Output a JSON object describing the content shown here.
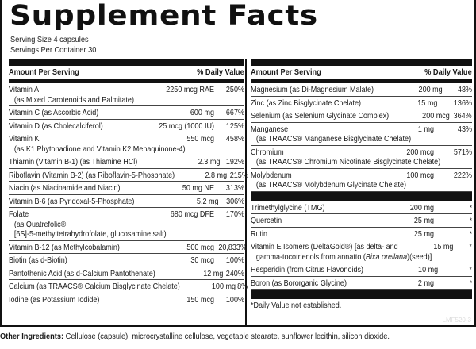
{
  "title": "Supplement Facts",
  "serving_size": "Serving Size 4 capsules",
  "servings_per_container": "Servings Per Container 30",
  "header": {
    "amount_label": "Amount Per Serving",
    "dv_label": "% Daily Value"
  },
  "left_rows": [
    {
      "name": "Vitamin A",
      "sub": "(as Mixed Carotenoids and Palmitate)",
      "amount": "2250 mcg RAE",
      "dv": "250%"
    },
    {
      "name": "Vitamin C (as Ascorbic Acid)",
      "amount": "600 mg",
      "dv": "667%"
    },
    {
      "name": "Vitamin D (as Cholecalciferol)",
      "amount": "25 mcg (1000 IU)",
      "dv": "125%"
    },
    {
      "name": "Vitamin K",
      "sub": "(as K1 Phytonadione and Vitamin K2 Menaquinone-4)",
      "amount": "550 mcg",
      "dv": "458%"
    },
    {
      "name": "Thiamin (Vitamin B-1) (as Thiamine HCl)",
      "amount": "2.3 mg",
      "dv": "192%"
    },
    {
      "name": "Riboflavin (Vitamin B-2) (as Riboflavin-5-Phosphate)",
      "amount": "2.8 mg",
      "dv": "215%"
    },
    {
      "name": "Niacin (as Niacinamide and Niacin)",
      "amount": "50 mg NE",
      "dv": "313%"
    },
    {
      "name": "Vitamin B-6 (as Pyridoxal-5-Phosphate)",
      "amount": "5.2 mg",
      "dv": "306%"
    },
    {
      "name": "Folate",
      "sub": "(as Quatrefolic®",
      "sub2": "[6S]-5-methyltetrahydrofolate, glucosamine salt)",
      "amount": "680 mcg DFE",
      "dv": "170%"
    },
    {
      "name": "Vitamin B-12 (as Methylcobalamin)",
      "amount": "500 mcg",
      "dv": "20,833%"
    },
    {
      "name": "Biotin (as d-Biotin)",
      "amount": "30 mcg",
      "dv": "100%"
    },
    {
      "name": "Pantothenic Acid (as d-Calcium Pantothenate)",
      "amount": "12 mg",
      "dv": "240%"
    },
    {
      "name": "Calcium (as TRAACS® Calcium Bisglycinate Chelate)",
      "amount": "100 mg",
      "dv": "8%"
    },
    {
      "name": "Iodine (as Potassium Iodide)",
      "amount": "150 mcg",
      "dv": "100%"
    }
  ],
  "right_rows": [
    {
      "name": "Magnesium (as Di-Magnesium Malate)",
      "amount": "200 mg",
      "dv": "48%"
    },
    {
      "name": "Zinc (as Zinc Bisglycinate Chelate)",
      "amount": "15 mg",
      "dv": "136%"
    },
    {
      "name": "Selenium (as Selenium Glycinate Complex)",
      "amount": "200 mcg",
      "dv": "364%"
    },
    {
      "name": "Manganese",
      "sub": "(as TRAACS® Manganese Bisglycinate Chelate)",
      "amount": "1 mg",
      "dv": "43%"
    },
    {
      "name": "Chromium",
      "sub": "(as TRAACS® Chromium Nicotinate Bisglycinate Chelate)",
      "amount": "200 mcg",
      "dv": "571%"
    },
    {
      "name": "Molybdenum",
      "sub": "(as TRAACS® Molybdenum Glycinate Chelate)",
      "amount": "100 mcg",
      "dv": "222%"
    }
  ],
  "other_rows": [
    {
      "name": "Trimethylglycine (TMG)",
      "amount": "200 mg",
      "dv": "*"
    },
    {
      "name": "Quercetin",
      "amount": "25 mg",
      "dv": "*"
    },
    {
      "name": "Rutin",
      "amount": "25 mg",
      "dv": "*"
    },
    {
      "name": "Vitamin E Isomers (DeltaGold®)  [as delta- and",
      "sub_pre": "gamma-tocotrienols from annatto (",
      "sub_italic": "Bixa orellana",
      "sub_post": ")(seed)]",
      "amount": "15 mg",
      "dv": "*"
    },
    {
      "name": "Hesperidin (from Citrus Flavonoids)",
      "amount": "10 mg",
      "dv": "*"
    },
    {
      "name": "Boron (as Bororganic Glycine)",
      "amount": "2 mg",
      "dv": "*"
    }
  ],
  "footnote": "*Daily Value not established.",
  "lot_code": "LMF520-3",
  "other_ingredients": {
    "label": "Other Ingredients:",
    "text": " Cellulose (capsule), microcrystalline cellulose, vegetable stearate, sunflower lecithin, silicon dioxide."
  }
}
